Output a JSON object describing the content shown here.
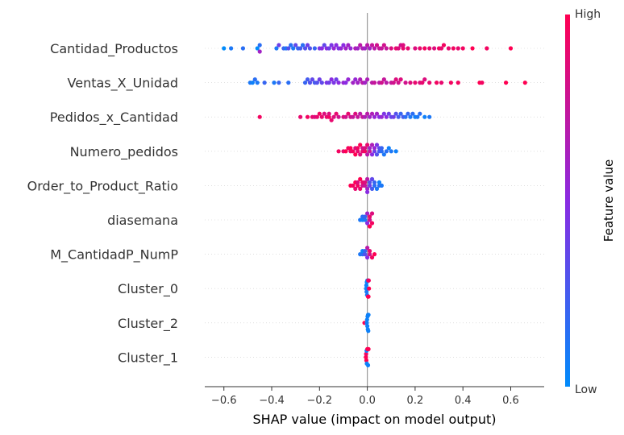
{
  "chart_data": {
    "type": "scatter",
    "subtype": "shap-beeswarm",
    "xlabel": "SHAP value (impact on model output)",
    "xlim": [
      -0.68,
      0.74
    ],
    "xticks": [
      -0.6,
      -0.4,
      -0.2,
      0.0,
      0.2,
      0.4,
      0.6
    ],
    "xtick_labels": [
      "−0.6",
      "−0.4",
      "−0.2",
      "0.0",
      "0.2",
      "0.4",
      "0.6"
    ],
    "colorbar": {
      "title": "Feature value",
      "high_label": "High",
      "low_label": "Low",
      "high_color": "#ff0052",
      "mid_color": "#8a2be2",
      "low_color": "#008bfb"
    },
    "features": [
      {
        "name": "Cantidad_Productos",
        "points": [
          [
            -0.6,
            0.0
          ],
          [
            -0.57,
            0.1
          ],
          [
            -0.52,
            0.15
          ],
          [
            -0.46,
            0.0
          ],
          [
            -0.45,
            0.15
          ],
          [
            -0.45,
            0.6
          ],
          [
            -0.38,
            0.1
          ],
          [
            -0.37,
            0.4
          ],
          [
            -0.35,
            0.2
          ],
          [
            -0.34,
            0.1
          ],
          [
            -0.33,
            0.3
          ],
          [
            -0.32,
            0.15
          ],
          [
            -0.31,
            0.1
          ],
          [
            -0.3,
            0.35
          ],
          [
            -0.29,
            0.2
          ],
          [
            -0.28,
            0.25
          ],
          [
            -0.27,
            0.15
          ],
          [
            -0.26,
            0.3
          ],
          [
            -0.25,
            0.4
          ],
          [
            -0.24,
            0.3
          ],
          [
            -0.22,
            0.2
          ],
          [
            -0.2,
            0.45
          ],
          [
            -0.19,
            0.5
          ],
          [
            -0.18,
            0.35
          ],
          [
            -0.17,
            0.5
          ],
          [
            -0.16,
            0.4
          ],
          [
            -0.15,
            0.45
          ],
          [
            -0.14,
            0.55
          ],
          [
            -0.13,
            0.5
          ],
          [
            -0.12,
            0.45
          ],
          [
            -0.11,
            0.55
          ],
          [
            -0.1,
            0.5
          ],
          [
            -0.09,
            0.6
          ],
          [
            -0.08,
            0.6
          ],
          [
            -0.07,
            0.55
          ],
          [
            -0.05,
            0.65
          ],
          [
            -0.04,
            0.6
          ],
          [
            -0.03,
            0.7
          ],
          [
            -0.02,
            0.65
          ],
          [
            -0.01,
            0.6
          ],
          [
            0.0,
            0.7
          ],
          [
            0.01,
            0.6
          ],
          [
            0.02,
            0.75
          ],
          [
            0.03,
            0.7
          ],
          [
            0.04,
            0.8
          ],
          [
            0.05,
            0.75
          ],
          [
            0.06,
            0.75
          ],
          [
            0.07,
            0.8
          ],
          [
            0.08,
            0.75
          ],
          [
            0.1,
            0.85
          ],
          [
            0.12,
            0.9
          ],
          [
            0.13,
            0.85
          ],
          [
            0.14,
            0.8
          ],
          [
            0.15,
            0.9
          ],
          [
            0.15,
            0.85
          ],
          [
            0.17,
            0.9
          ],
          [
            0.2,
            0.85
          ],
          [
            0.22,
            0.9
          ],
          [
            0.24,
            0.95
          ],
          [
            0.26,
            0.9
          ],
          [
            0.28,
            0.85
          ],
          [
            0.3,
            0.95
          ],
          [
            0.31,
            0.9
          ],
          [
            0.32,
            0.95
          ],
          [
            0.34,
            0.9
          ],
          [
            0.36,
            0.95
          ],
          [
            0.38,
            0.9
          ],
          [
            0.4,
            0.95
          ],
          [
            0.44,
            1.0
          ],
          [
            0.5,
            0.95
          ],
          [
            0.6,
            1.0
          ]
        ]
      },
      {
        "name": "Ventas_X_Unidad",
        "points": [
          [
            -0.49,
            0.1
          ],
          [
            -0.48,
            0.05
          ],
          [
            -0.47,
            0.15
          ],
          [
            -0.46,
            0.1
          ],
          [
            -0.43,
            0.2
          ],
          [
            -0.39,
            0.1
          ],
          [
            -0.37,
            0.2
          ],
          [
            -0.33,
            0.15
          ],
          [
            -0.26,
            0.2
          ],
          [
            -0.25,
            0.25
          ],
          [
            -0.24,
            0.3
          ],
          [
            -0.23,
            0.35
          ],
          [
            -0.22,
            0.25
          ],
          [
            -0.21,
            0.3
          ],
          [
            -0.2,
            0.4
          ],
          [
            -0.19,
            0.35
          ],
          [
            -0.17,
            0.45
          ],
          [
            -0.16,
            0.4
          ],
          [
            -0.15,
            0.5
          ],
          [
            -0.14,
            0.45
          ],
          [
            -0.13,
            0.4
          ],
          [
            -0.12,
            0.5
          ],
          [
            -0.1,
            0.55
          ],
          [
            -0.09,
            0.5
          ],
          [
            -0.08,
            0.55
          ],
          [
            -0.06,
            0.6
          ],
          [
            -0.05,
            0.55
          ],
          [
            -0.04,
            0.6
          ],
          [
            -0.03,
            0.65
          ],
          [
            -0.02,
            0.7
          ],
          [
            -0.01,
            0.6
          ],
          [
            0.0,
            0.65
          ],
          [
            0.02,
            0.7
          ],
          [
            0.03,
            0.75
          ],
          [
            0.05,
            0.7
          ],
          [
            0.06,
            0.8
          ],
          [
            0.07,
            0.75
          ],
          [
            0.08,
            0.7
          ],
          [
            0.1,
            0.75
          ],
          [
            0.11,
            0.8
          ],
          [
            0.12,
            0.85
          ],
          [
            0.13,
            0.8
          ],
          [
            0.14,
            0.85
          ],
          [
            0.16,
            0.8
          ],
          [
            0.18,
            0.85
          ],
          [
            0.2,
            0.9
          ],
          [
            0.22,
            0.85
          ],
          [
            0.23,
            0.9
          ],
          [
            0.24,
            0.85
          ],
          [
            0.26,
            0.9
          ],
          [
            0.29,
            0.95
          ],
          [
            0.31,
            0.9
          ],
          [
            0.35,
            0.95
          ],
          [
            0.38,
            0.95
          ],
          [
            0.47,
            1.0
          ],
          [
            0.48,
            0.95
          ],
          [
            0.58,
            1.0
          ],
          [
            0.66,
            1.0
          ]
        ]
      },
      {
        "name": "Pedidos_x_Cantidad",
        "points": [
          [
            -0.45,
            0.95
          ],
          [
            -0.28,
            0.9
          ],
          [
            -0.25,
            0.95
          ],
          [
            -0.23,
            0.9
          ],
          [
            -0.22,
            0.85
          ],
          [
            -0.21,
            0.9
          ],
          [
            -0.2,
            0.95
          ],
          [
            -0.19,
            0.9
          ],
          [
            -0.18,
            0.85
          ],
          [
            -0.17,
            0.9
          ],
          [
            -0.16,
            0.95
          ],
          [
            -0.16,
            0.85
          ],
          [
            -0.15,
            0.9
          ],
          [
            -0.14,
            0.85
          ],
          [
            -0.13,
            0.9
          ],
          [
            -0.12,
            0.8
          ],
          [
            -0.1,
            0.85
          ],
          [
            -0.09,
            0.8
          ],
          [
            -0.08,
            0.9
          ],
          [
            -0.07,
            0.8
          ],
          [
            -0.06,
            0.75
          ],
          [
            -0.05,
            0.85
          ],
          [
            -0.04,
            0.75
          ],
          [
            -0.03,
            0.7
          ],
          [
            -0.02,
            0.75
          ],
          [
            -0.01,
            0.65
          ],
          [
            0.0,
            0.7
          ],
          [
            0.01,
            0.6
          ],
          [
            0.02,
            0.65
          ],
          [
            0.03,
            0.55
          ],
          [
            0.04,
            0.6
          ],
          [
            0.05,
            0.5
          ],
          [
            0.06,
            0.55
          ],
          [
            0.07,
            0.45
          ],
          [
            0.08,
            0.5
          ],
          [
            0.09,
            0.4
          ],
          [
            0.1,
            0.35
          ],
          [
            0.11,
            0.4
          ],
          [
            0.12,
            0.3
          ],
          [
            0.13,
            0.25
          ],
          [
            0.14,
            0.2
          ],
          [
            0.15,
            0.25
          ],
          [
            0.16,
            0.15
          ],
          [
            0.17,
            0.2
          ],
          [
            0.18,
            0.1
          ],
          [
            0.19,
            0.15
          ],
          [
            0.2,
            0.05
          ],
          [
            0.21,
            0.1
          ],
          [
            0.22,
            0.15
          ],
          [
            0.24,
            0.05
          ],
          [
            0.26,
            0.1
          ]
        ]
      },
      {
        "name": "Numero_pedidos",
        "points": [
          [
            -0.12,
            0.95
          ],
          [
            -0.1,
            0.9
          ],
          [
            -0.09,
            1.0
          ],
          [
            -0.08,
            0.95
          ],
          [
            -0.07,
            0.9
          ],
          [
            -0.07,
            1.0
          ],
          [
            -0.06,
            0.95
          ],
          [
            -0.05,
            0.85
          ],
          [
            -0.05,
            1.0
          ],
          [
            -0.04,
            0.9
          ],
          [
            -0.04,
            0.95
          ],
          [
            -0.03,
            0.85
          ],
          [
            -0.03,
            1.0
          ],
          [
            -0.02,
            0.9
          ],
          [
            -0.02,
            0.8
          ],
          [
            -0.01,
            0.95
          ],
          [
            -0.01,
            0.85
          ],
          [
            0.0,
            0.7
          ],
          [
            0.0,
            0.9
          ],
          [
            0.01,
            0.75
          ],
          [
            0.01,
            0.6
          ],
          [
            0.02,
            0.5
          ],
          [
            0.02,
            0.65
          ],
          [
            0.03,
            0.4
          ],
          [
            0.03,
            0.55
          ],
          [
            0.04,
            0.3
          ],
          [
            0.04,
            0.45
          ],
          [
            0.05,
            0.25
          ],
          [
            0.05,
            0.35
          ],
          [
            0.06,
            0.15
          ],
          [
            0.06,
            0.2
          ],
          [
            0.07,
            0.1
          ],
          [
            0.08,
            0.15
          ],
          [
            0.09,
            0.05
          ],
          [
            0.1,
            0.1
          ],
          [
            0.12,
            0.05
          ]
        ]
      },
      {
        "name": "Order_to_Product_Ratio",
        "points": [
          [
            -0.07,
            1.0
          ],
          [
            -0.06,
            0.95
          ],
          [
            -0.05,
            1.0
          ],
          [
            -0.05,
            0.9
          ],
          [
            -0.04,
            0.95
          ],
          [
            -0.04,
            0.85
          ],
          [
            -0.03,
            0.9
          ],
          [
            -0.03,
            1.0
          ],
          [
            -0.02,
            0.8
          ],
          [
            -0.02,
            0.9
          ],
          [
            -0.01,
            0.75
          ],
          [
            -0.01,
            0.85
          ],
          [
            0.0,
            0.6
          ],
          [
            0.0,
            0.7
          ],
          [
            0.0,
            0.5
          ],
          [
            0.01,
            0.4
          ],
          [
            0.01,
            0.3
          ],
          [
            0.02,
            0.25
          ],
          [
            0.02,
            0.35
          ],
          [
            0.03,
            0.15
          ],
          [
            0.03,
            0.2
          ],
          [
            0.04,
            0.1
          ],
          [
            0.05,
            0.15
          ],
          [
            0.05,
            0.05
          ],
          [
            0.06,
            0.1
          ]
        ]
      },
      {
        "name": "diasemana",
        "points": [
          [
            -0.03,
            0.1
          ],
          [
            -0.02,
            0.05
          ],
          [
            -0.02,
            0.15
          ],
          [
            -0.01,
            0.1
          ],
          [
            -0.01,
            0.2
          ],
          [
            0.0,
            0.5
          ],
          [
            0.0,
            0.6
          ],
          [
            0.01,
            0.8
          ],
          [
            0.01,
            0.9
          ],
          [
            0.02,
            0.95
          ],
          [
            0.02,
            0.85
          ],
          [
            0.01,
            1.0
          ]
        ]
      },
      {
        "name": "M_CantidadP_NumP",
        "points": [
          [
            -0.03,
            0.1
          ],
          [
            -0.02,
            0.15
          ],
          [
            -0.02,
            0.05
          ],
          [
            -0.01,
            0.3
          ],
          [
            -0.01,
            0.2
          ],
          [
            0.0,
            0.5
          ],
          [
            0.0,
            0.7
          ],
          [
            0.01,
            0.8
          ],
          [
            0.01,
            0.9
          ],
          [
            0.02,
            0.95
          ],
          [
            0.03,
            1.0
          ]
        ]
      },
      {
        "name": "Cluster_0",
        "points": [
          [
            -0.005,
            0.05
          ],
          [
            -0.004,
            0.05
          ],
          [
            -0.003,
            0.1
          ],
          [
            -0.002,
            0.05
          ],
          [
            -0.001,
            0.1
          ],
          [
            0.0,
            0.05
          ],
          [
            0.003,
            1.0
          ],
          [
            0.004,
            0.95
          ],
          [
            0.005,
            1.0
          ],
          [
            0.006,
            0.95
          ],
          [
            0.007,
            1.0
          ]
        ]
      },
      {
        "name": "Cluster_2",
        "points": [
          [
            -0.012,
            1.0
          ],
          [
            -0.002,
            0.05
          ],
          [
            -0.001,
            0.05
          ],
          [
            0.0,
            0.05
          ],
          [
            0.001,
            0.05
          ],
          [
            0.002,
            0.05
          ],
          [
            0.003,
            0.05
          ],
          [
            0.004,
            0.05
          ],
          [
            0.005,
            0.05
          ]
        ]
      },
      {
        "name": "Cluster_1",
        "points": [
          [
            -0.006,
            1.0
          ],
          [
            -0.005,
            0.95
          ],
          [
            -0.004,
            1.0
          ],
          [
            -0.003,
            0.05
          ],
          [
            -0.002,
            0.05
          ],
          [
            0.0,
            1.0
          ],
          [
            0.003,
            0.05
          ],
          [
            0.005,
            1.0
          ]
        ]
      }
    ]
  }
}
